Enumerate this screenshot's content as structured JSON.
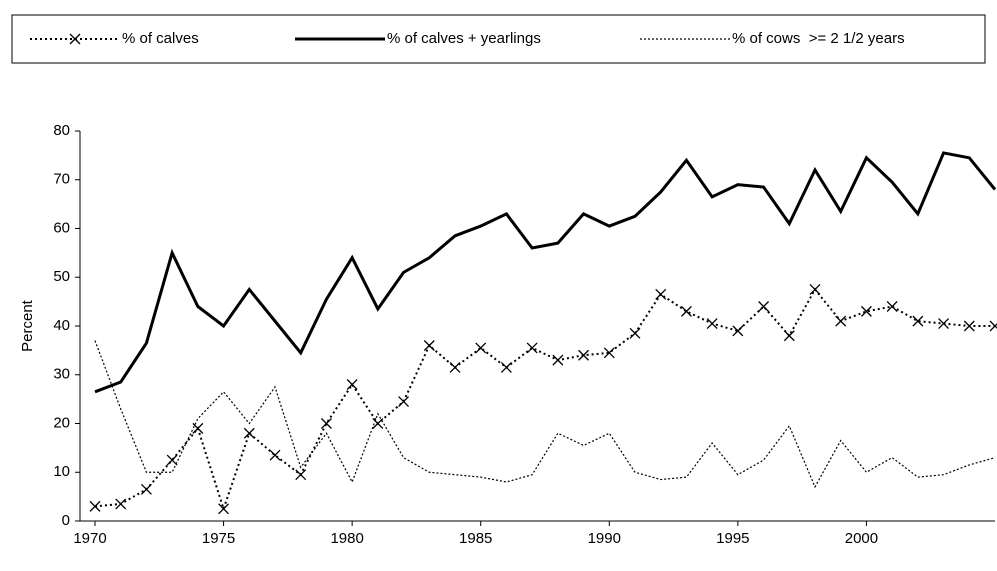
{
  "chart_data": {
    "type": "line",
    "y_label": "Percent",
    "x": [
      1970,
      1971,
      1972,
      1973,
      1974,
      1975,
      1976,
      1977,
      1978,
      1979,
      1980,
      1981,
      1982,
      1983,
      1984,
      1985,
      1986,
      1987,
      1988,
      1989,
      1990,
      1991,
      1992,
      1993,
      1994,
      1995,
      1996,
      1997,
      1998,
      1999,
      2000,
      2001,
      2002,
      2003,
      2004,
      2005
    ],
    "xlim": [
      1970,
      2005
    ],
    "xticks": [
      1970,
      1975,
      1980,
      1985,
      1990,
      1995,
      2000
    ],
    "ylim": [
      0,
      80
    ],
    "yticks": [
      0,
      10,
      20,
      30,
      40,
      50,
      60,
      70,
      80
    ],
    "grid": false,
    "legend": "top",
    "series": [
      {
        "name": "% of calves",
        "color": "#000000",
        "line_style": "dotted",
        "marker": "x",
        "values": [
          3,
          3.5,
          6.5,
          12.5,
          19,
          2.5,
          18,
          13.5,
          9.5,
          20,
          28,
          20,
          24.5,
          36,
          31.5,
          35.5,
          31.5,
          35.5,
          33,
          34,
          34.5,
          38.5,
          46.5,
          43,
          40.5,
          39,
          44,
          38,
          47.5,
          41,
          43,
          44,
          41,
          40.5,
          40,
          40
        ]
      },
      {
        "name": "% of calves + yearlings",
        "color": "#000000",
        "line_style": "solid",
        "marker": "none",
        "values": [
          26.5,
          28.5,
          36.5,
          55,
          44,
          40,
          47.5,
          41,
          34.5,
          45.5,
          54,
          43.5,
          51,
          54,
          58.5,
          60.5,
          63,
          56,
          57,
          63,
          60.5,
          62.5,
          67.5,
          74,
          66.5,
          69,
          68.5,
          61,
          72,
          63.5,
          74.5,
          69.5,
          63,
          75.5,
          74.5,
          68
        ]
      },
      {
        "name": "% of cows  >= 2 1/2 years",
        "color": "#000000",
        "line_style": "thin-dotted",
        "marker": "none",
        "values": [
          37,
          23,
          10,
          10,
          21,
          26.5,
          20,
          27.5,
          11,
          18,
          8,
          22,
          13,
          10,
          9.5,
          9,
          8,
          9.5,
          18,
          15.5,
          18,
          10,
          8.5,
          9,
          16,
          9.5,
          12.5,
          19.5,
          7,
          16.5,
          10,
          13,
          9,
          9.5,
          11.5,
          13
        ]
      }
    ]
  }
}
